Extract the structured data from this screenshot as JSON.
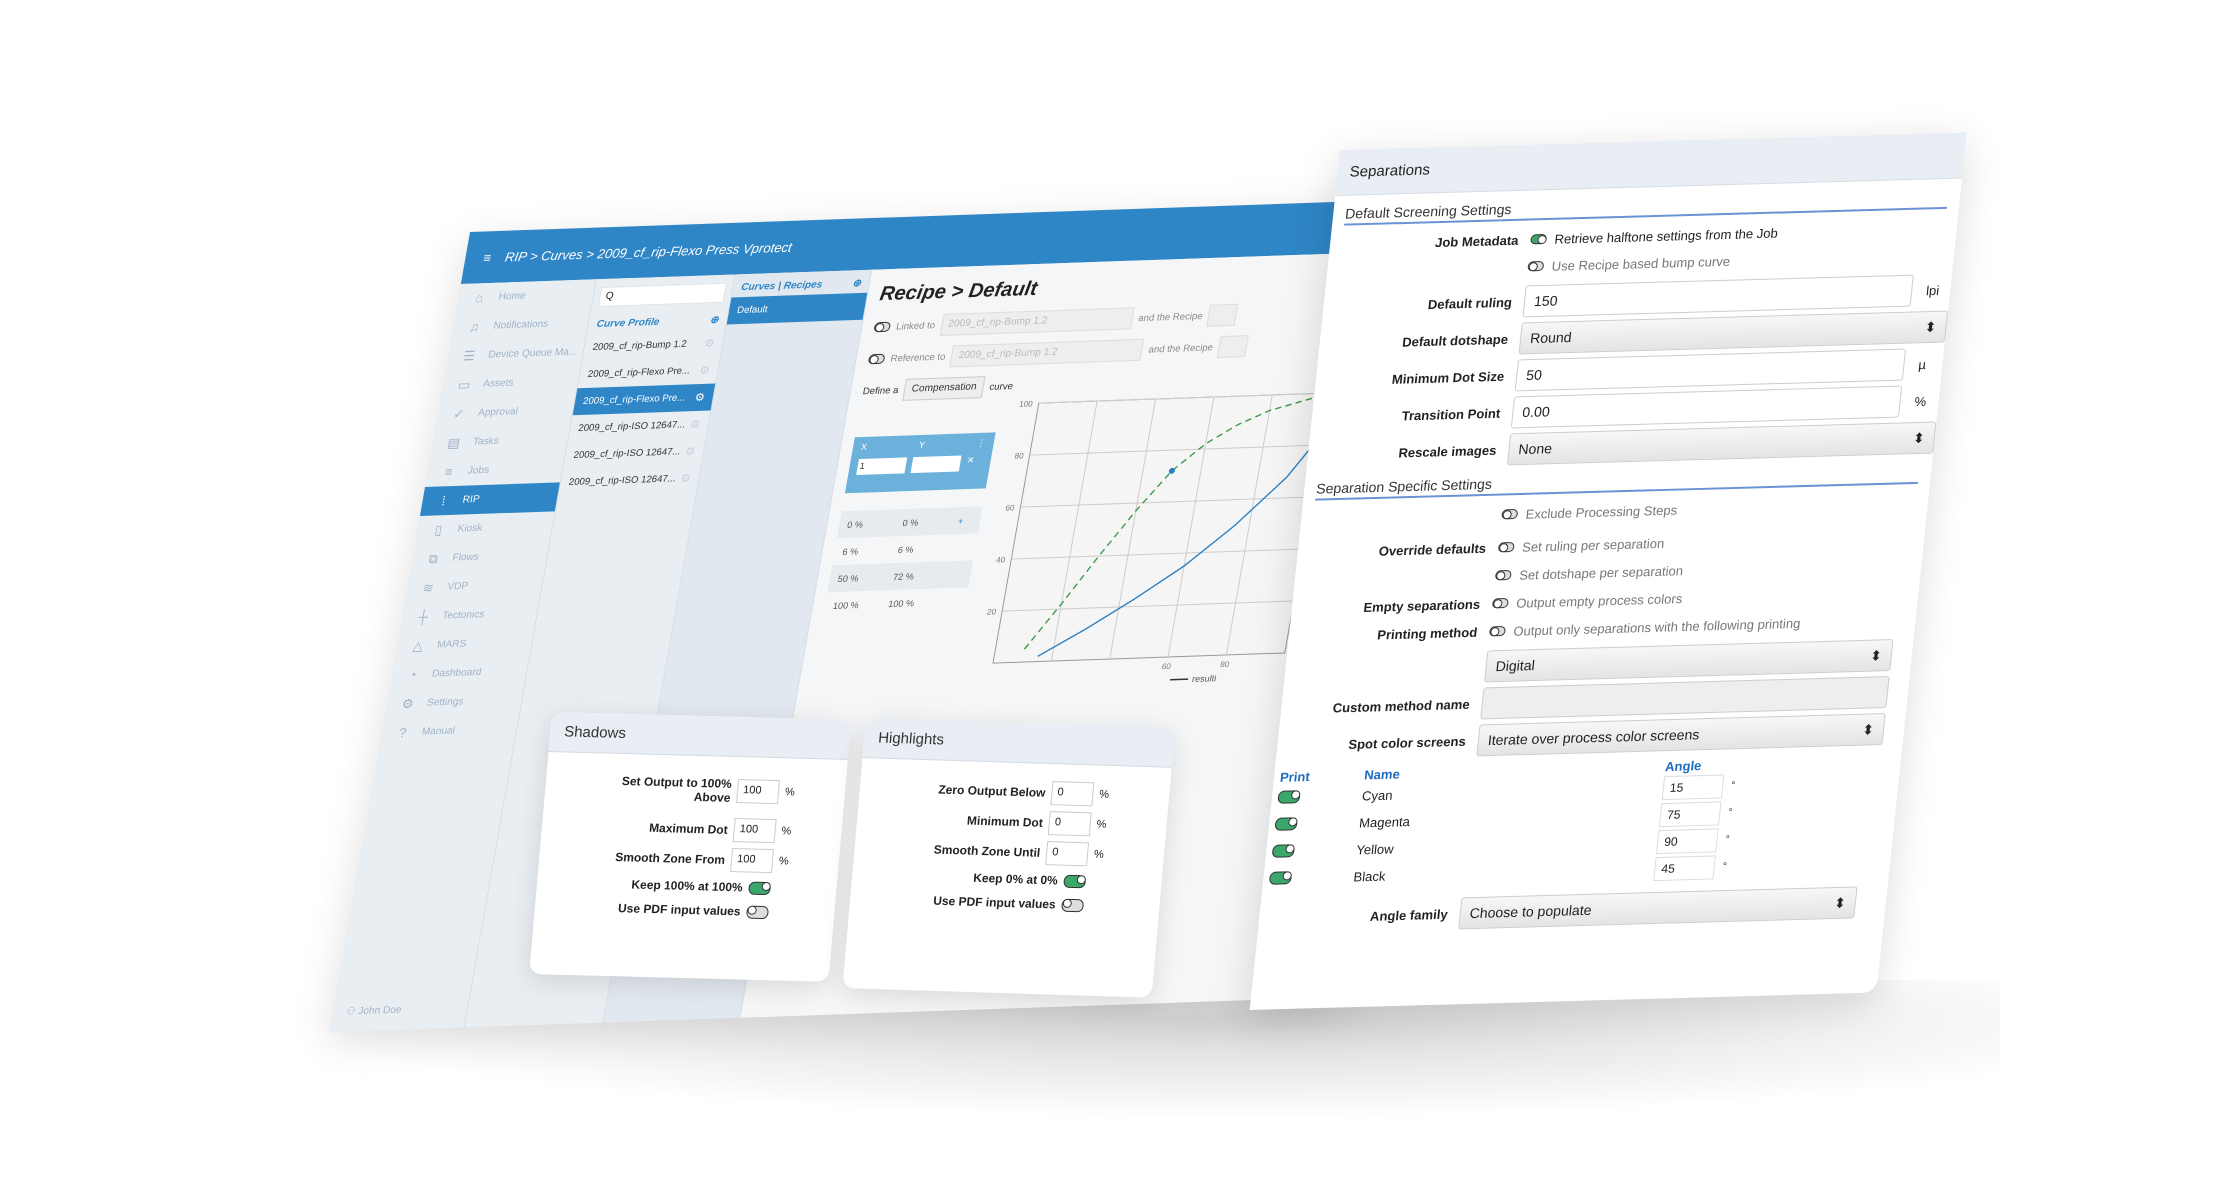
{
  "header": {
    "menu_icon": "hamburger-icon",
    "breadcrumb": "RIP > Curves > 2009_cf_rip-Flexo Press Vprotect"
  },
  "sidebar": {
    "items": [
      {
        "label": "Home",
        "icon": "home-icon",
        "glyph": "⌂"
      },
      {
        "label": "Notifications",
        "icon": "bell-icon",
        "glyph": "♫"
      },
      {
        "label": "Device Queue Ma...",
        "icon": "queue-icon",
        "glyph": "☰"
      },
      {
        "label": "Assets",
        "icon": "drive-icon",
        "glyph": "▭"
      },
      {
        "label": "Approval",
        "icon": "check-circle-icon",
        "glyph": "✓"
      },
      {
        "label": "Tasks",
        "icon": "clipboard-icon",
        "glyph": "▤"
      },
      {
        "label": "Jobs",
        "icon": "list-icon",
        "glyph": "≡"
      },
      {
        "label": "RIP",
        "icon": "rip-icon",
        "glyph": "⁞",
        "active": true
      },
      {
        "label": "Kiosk",
        "icon": "kiosk-icon",
        "glyph": "▯"
      },
      {
        "label": "Flows",
        "icon": "flows-icon",
        "glyph": "⧉"
      },
      {
        "label": "VDP",
        "icon": "layers-icon",
        "glyph": "≋"
      },
      {
        "label": "Tectonics",
        "icon": "tectonics-icon",
        "glyph": "┼"
      },
      {
        "label": "MARS",
        "icon": "mars-icon",
        "glyph": "△"
      },
      {
        "label": "Dashboard",
        "icon": "dashboard-icon",
        "glyph": "◔"
      },
      {
        "label": "Settings",
        "icon": "gear-icon",
        "glyph": "⚙"
      },
      {
        "label": "Manual",
        "icon": "help-icon",
        "glyph": "?"
      }
    ],
    "user": "John Doe"
  },
  "curve_profile": {
    "search_value": "Q",
    "heading": "Curve Profile",
    "items": [
      "2009_cf_rip-Bump 1.2",
      "2009_cf_rip-Flexo Pre...",
      "2009_cf_rip-Flexo Pre...",
      "2009_cf_rip-ISO 12647...",
      "2009_cf_rip-ISO 12647...",
      "2009_cf_rip-ISO 12647..."
    ],
    "selected_index": 2
  },
  "recipes": {
    "heading": "Curves | Recipes",
    "items": [
      "Default"
    ]
  },
  "recipe": {
    "title": "Recipe > Default",
    "linked_label": "Linked to",
    "linked_value": "2009_cf_rip-Bump 1.2",
    "and_recipe": "and the Recipe",
    "reference_label": "Reference to",
    "reference_value": "2009_cf_rip-Bump 1.2",
    "define_pre": "Define a",
    "define_value": "Compensation",
    "define_post": "curve",
    "table": {
      "x_header": "X",
      "y_header": "Y",
      "x_input": "1",
      "y_input": "",
      "rows": [
        [
          "0 %",
          "0 %"
        ],
        [
          "6 %",
          "6 %"
        ],
        [
          "50 %",
          "72 %"
        ],
        [
          "100 %",
          "100 %"
        ]
      ]
    }
  },
  "chart_data": {
    "type": "line",
    "y_ticks": [
      20,
      40,
      60,
      80,
      100
    ],
    "x_tick_labels": [
      "60",
      "80"
    ],
    "ylim": [
      0,
      100
    ],
    "xlim": [
      0,
      100
    ],
    "grid": true,
    "legend": [
      "resulti"
    ],
    "legend_placement": "bottom-right",
    "series": [
      {
        "style": "dashed",
        "color": "#3a9a4a",
        "x": [
          10,
          20,
          30,
          40,
          50,
          60,
          70,
          80,
          90,
          100
        ],
        "y": [
          5,
          22,
          40,
          57,
          72,
          82,
          89,
          94,
          97,
          100
        ]
      },
      {
        "name": "resulti",
        "style": "solid",
        "color": "#2b7fc0",
        "x": [
          15,
          30,
          45,
          60,
          75,
          90,
          100
        ],
        "y": [
          2,
          12,
          23,
          35,
          50,
          68,
          85
        ]
      }
    ],
    "points": [
      {
        "x": 50,
        "y": 72,
        "color": "#2b7fc0"
      }
    ]
  },
  "shadows": {
    "title": "Shadows",
    "rows": [
      {
        "label": "Set Output to 100% Above",
        "value": "100",
        "unit": "%"
      },
      {
        "label": "Maximum Dot",
        "value": "100",
        "unit": "%"
      },
      {
        "label": "Smooth Zone From",
        "value": "100",
        "unit": "%"
      }
    ],
    "keep_label": "Keep 100% at 100%",
    "keep_on": true,
    "pdf_label": "Use PDF input values",
    "pdf_on": false
  },
  "highlights": {
    "title": "Highlights",
    "rows": [
      {
        "label": "Zero Output Below",
        "value": "0",
        "unit": "%"
      },
      {
        "label": "Minimum Dot",
        "value": "0",
        "unit": "%"
      },
      {
        "label": "Smooth Zone Until",
        "value": "0",
        "unit": "%"
      }
    ],
    "keep_label": "Keep 0% at 0%",
    "keep_on": true,
    "pdf_label": "Use PDF input values",
    "pdf_on": false
  },
  "separations": {
    "title": "Separations",
    "default_section": "Default Screening Settings",
    "job_metadata_label": "Job Metadata",
    "retrieve_label": "Retrieve halftone settings from the Job",
    "retrieve_on": true,
    "bump_label": "Use Recipe based bump curve",
    "bump_on": false,
    "ruling_label": "Default ruling",
    "ruling_value": "150",
    "ruling_unit": "lpi",
    "dotshape_label": "Default dotshape",
    "dotshape_value": "Round",
    "min_dot_label": "Minimum Dot Size",
    "min_dot_value": "50",
    "min_dot_unit": "µ",
    "transition_label": "Transition Point",
    "transition_value": "0.00",
    "transition_unit": "%",
    "rescale_label": "Rescale images",
    "rescale_value": "None",
    "specific_section": "Separation Specific Settings",
    "exclude_label": "Exclude Processing Steps",
    "override_label": "Override defaults",
    "ruling_per_sep": "Set ruling per separation",
    "dotshape_per_sep": "Set dotshape per separation",
    "empty_label": "Empty separations",
    "empty_option": "Output empty process colors",
    "printing_label": "Printing method",
    "printing_option": "Output only separations with the following printing",
    "printing_value": "Digital",
    "custom_label": "Custom method name",
    "custom_value": "",
    "spot_label": "Spot color screens",
    "spot_value": "Iterate over process color screens",
    "col_print": "Print",
    "col_name": "Name",
    "col_angle": "Angle",
    "inks": [
      {
        "name": "Cyan",
        "angle": "15",
        "print": true
      },
      {
        "name": "Magenta",
        "angle": "75",
        "print": true
      },
      {
        "name": "Yellow",
        "angle": "90",
        "print": true
      },
      {
        "name": "Black",
        "angle": "45",
        "print": true
      }
    ],
    "degree": "°",
    "angle_family_label": "Angle family",
    "angle_family_value": "Choose to populate"
  },
  "colors": {
    "brand": "#2f86c6",
    "toggle_on": "#3aa86b",
    "section_rule": "#6c92d6"
  }
}
